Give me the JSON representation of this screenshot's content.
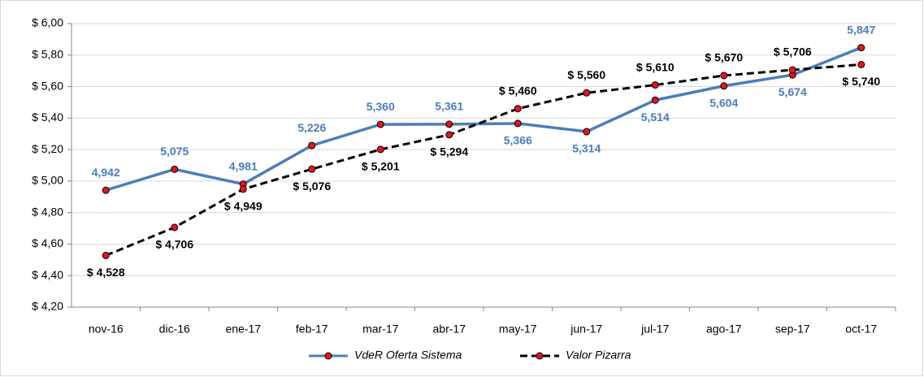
{
  "chart_data": {
    "type": "line",
    "categories": [
      "nov-16",
      "dic-16",
      "ene-17",
      "feb-17",
      "mar-17",
      "abr-17",
      "may-17",
      "jun-17",
      "jul-17",
      "ago-17",
      "sep-17",
      "oct-17"
    ],
    "series": [
      {
        "name": "VdeR Oferta Sistema",
        "color": "#4a7ebb",
        "marker_color": "#e8141a",
        "dashed": false,
        "values": [
          4.942,
          5.075,
          4.981,
          5.226,
          5.36,
          5.361,
          5.366,
          5.314,
          5.514,
          5.604,
          5.674,
          5.847
        ],
        "value_labels": [
          "4,942",
          "5,075",
          "4,981",
          "5,226",
          "5,360",
          "5,361",
          "5,366",
          "5,314",
          "5,514",
          "5,604",
          "5,674",
          "5,847"
        ]
      },
      {
        "name": "Valor Pizarra",
        "color": "#000000",
        "marker_color": "#e8141a",
        "dashed": true,
        "values": [
          4.528,
          4.706,
          4.949,
          5.076,
          5.201,
          5.294,
          5.46,
          5.56,
          5.61,
          5.67,
          5.706,
          5.74
        ],
        "value_labels": [
          "$ 4,528",
          "$ 4,706",
          "$ 4,949",
          "$ 5,076",
          "$ 5,201",
          "$ 5,294",
          "$ 5,460",
          "$ 5,560",
          "$ 5,610",
          "$ 5,670",
          "$ 5,706",
          "$ 5,740"
        ]
      }
    ],
    "ylim": [
      4.2,
      6.0
    ],
    "yticks": [
      {
        "value": 4.2,
        "label": "$ 4,20"
      },
      {
        "value": 4.4,
        "label": "$ 4,40"
      },
      {
        "value": 4.6,
        "label": "$ 4,60"
      },
      {
        "value": 4.8,
        "label": "$ 4,80"
      },
      {
        "value": 5.0,
        "label": "$ 5,00"
      },
      {
        "value": 5.2,
        "label": "$ 5,20"
      },
      {
        "value": 5.4,
        "label": "$ 5,40"
      },
      {
        "value": 5.6,
        "label": "$ 5,60"
      },
      {
        "value": 5.8,
        "label": "$ 5,80"
      },
      {
        "value": 6.0,
        "label": "$ 6,00"
      }
    ],
    "grid": true,
    "legend": "bottom"
  }
}
